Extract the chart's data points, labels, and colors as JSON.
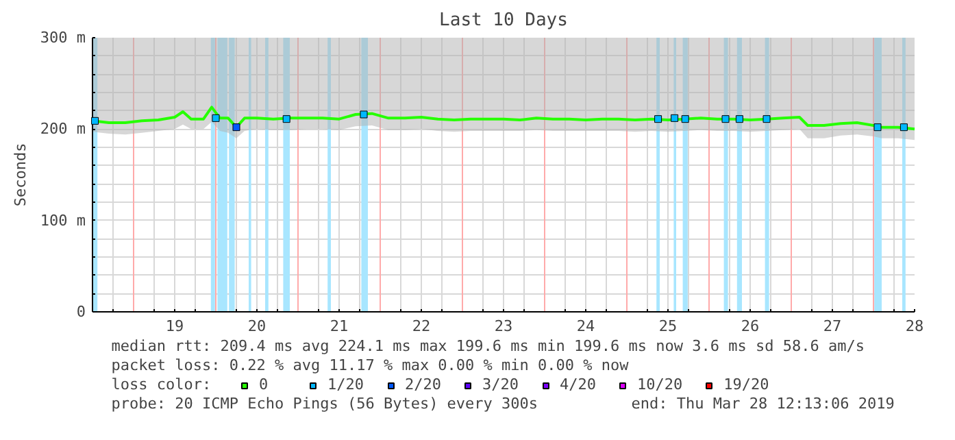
{
  "chart_data": {
    "type": "line",
    "title": "Last 10 Days",
    "ylabel": "Seconds",
    "xlim": [
      18,
      28
    ],
    "ylim": [
      0,
      300
    ],
    "xticks": [
      {
        "value": 18.25,
        "label": null
      },
      {
        "value": 18.75,
        "label": null
      },
      19,
      {
        "value": 19.25,
        "label": null
      },
      {
        "value": 19.75,
        "label": null
      },
      20,
      {
        "value": 20.25,
        "label": null
      },
      {
        "value": 20.75,
        "label": null
      },
      21,
      {
        "value": 21.25,
        "label": null
      },
      {
        "value": 21.75,
        "label": null
      },
      22,
      {
        "value": 22.25,
        "label": null
      },
      {
        "value": 22.75,
        "label": null
      },
      23,
      {
        "value": 23.25,
        "label": null
      },
      {
        "value": 23.75,
        "label": null
      },
      24,
      {
        "value": 24.25,
        "label": null
      },
      {
        "value": 24.75,
        "label": null
      },
      25,
      {
        "value": 25.25,
        "label": null
      },
      {
        "value": 25.75,
        "label": null
      },
      26,
      {
        "value": 26.25,
        "label": null
      },
      {
        "value": 26.75,
        "label": null
      },
      27,
      {
        "value": 27.25,
        "label": null
      },
      {
        "value": 27.75,
        "label": null
      },
      28
    ],
    "yticks": [
      0,
      {
        "value": 20,
        "label": null
      },
      {
        "value": 40,
        "label": null
      },
      {
        "value": 60,
        "label": null
      },
      {
        "value": 80,
        "label": null
      },
      {
        "value": 100,
        "label": "100 m"
      },
      {
        "value": 120,
        "label": null
      },
      {
        "value": 140,
        "label": null
      },
      {
        "value": 160,
        "label": null
      },
      {
        "value": 180,
        "label": null
      },
      {
        "value": 200,
        "label": "200 m"
      },
      {
        "value": 220,
        "label": null
      },
      {
        "value": 240,
        "label": null
      },
      {
        "value": 260,
        "label": null
      },
      {
        "value": 280,
        "label": null
      },
      {
        "value": 300,
        "label": "300 m"
      }
    ],
    "grid": true,
    "legend": "bottom",
    "legend_title": "loss color:",
    "series": [
      {
        "name": "0",
        "color": "#26ff00",
        "x": [
          18.0,
          18.2,
          18.4,
          18.6,
          18.8,
          19.0,
          19.1,
          19.2,
          19.35,
          19.45,
          19.55,
          19.65,
          19.75,
          19.85,
          20.0,
          20.2,
          20.4,
          20.6,
          20.8,
          21.0,
          21.2,
          21.4,
          21.6,
          21.8,
          22.0,
          22.2,
          22.4,
          22.6,
          22.8,
          23.0,
          23.2,
          23.4,
          23.6,
          23.8,
          24.0,
          24.2,
          24.4,
          24.6,
          24.8,
          25.0,
          25.2,
          25.4,
          25.6,
          25.8,
          26.0,
          26.2,
          26.4,
          26.6,
          26.7,
          26.9,
          27.1,
          27.3,
          27.5,
          27.6,
          27.8,
          28.0
        ],
        "values": [
          209,
          207,
          207,
          209,
          210,
          213,
          219,
          211,
          211,
          224,
          212,
          212,
          202,
          212,
          212,
          211,
          212,
          212,
          212,
          211,
          216,
          217,
          212,
          212,
          213,
          211,
          210,
          211,
          211,
          211,
          210,
          212,
          211,
          211,
          210,
          211,
          211,
          210,
          211,
          210,
          211,
          212,
          211,
          211,
          210,
          211,
          212,
          213,
          204,
          204,
          206,
          207,
          204,
          202,
          202,
          200
        ],
        "lower": [
          197,
          195,
          194,
          196,
          198,
          200,
          205,
          200,
          200,
          208,
          198,
          196,
          190,
          198,
          200,
          199,
          199,
          200,
          200,
          199,
          203,
          204,
          199,
          199,
          200,
          198,
          197,
          198,
          198,
          198,
          198,
          199,
          198,
          198,
          198,
          198,
          198,
          197,
          198,
          197,
          198,
          199,
          198,
          198,
          197,
          198,
          199,
          200,
          190,
          190,
          193,
          194,
          192,
          190,
          190,
          188
        ],
        "upper": [
          300,
          300,
          300,
          300,
          300,
          300,
          300,
          300,
          300,
          300,
          300,
          300,
          300,
          300,
          300,
          300,
          300,
          300,
          300,
          300,
          300,
          300,
          300,
          300,
          300,
          300,
          300,
          300,
          300,
          300,
          300,
          300,
          300,
          300,
          300,
          300,
          300,
          300,
          300,
          300,
          300,
          300,
          300,
          300,
          300,
          300,
          300,
          300,
          300,
          300,
          300,
          300,
          300,
          300,
          300,
          300
        ]
      },
      {
        "name": "1/20",
        "color": "#00b8ff",
        "type": "scatter",
        "marker": "square",
        "x": [
          18.03,
          19.5,
          20.36,
          21.3,
          24.88,
          25.08,
          25.21,
          25.7,
          25.87,
          26.2,
          27.55,
          27.87
        ],
        "values": [
          209,
          212,
          211,
          216,
          211,
          212,
          211,
          211,
          211,
          211,
          202,
          202
        ]
      },
      {
        "name": "2/20",
        "color": "#0059ff",
        "type": "scatter",
        "marker": "square",
        "x": [
          19.75
        ],
        "values": [
          202
        ]
      },
      {
        "name": "3/20",
        "color": "#5e00ff",
        "type": "scatter",
        "marker": "square"
      },
      {
        "name": "4/20",
        "color": "#7e00ff",
        "type": "scatter",
        "marker": "square"
      },
      {
        "name": "10/20",
        "color": "#dd00ff",
        "type": "scatter",
        "marker": "square"
      },
      {
        "name": "19/20",
        "color": "#ff0000",
        "type": "scatter",
        "marker": "square"
      }
    ],
    "bands": [
      {
        "axis": "x",
        "from": 18.0,
        "to": 18.06,
        "color": "#a8e6ff"
      },
      {
        "axis": "x",
        "from": 19.44,
        "to": 19.49,
        "color": "#a8e6ff"
      },
      {
        "axis": "x",
        "from": 19.52,
        "to": 19.64,
        "color": "#a8e6ff"
      },
      {
        "axis": "x",
        "from": 19.66,
        "to": 19.73,
        "color": "#a8e6ff"
      },
      {
        "axis": "x",
        "from": 19.9,
        "to": 19.93,
        "color": "#a8e6ff"
      },
      {
        "axis": "x",
        "from": 20.1,
        "to": 20.14,
        "color": "#a8e6ff"
      },
      {
        "axis": "x",
        "from": 20.32,
        "to": 20.4,
        "color": "#a8e6ff"
      },
      {
        "axis": "x",
        "from": 20.86,
        "to": 20.9,
        "color": "#a8e6ff"
      },
      {
        "axis": "x",
        "from": 21.27,
        "to": 21.35,
        "color": "#a8e6ff"
      },
      {
        "axis": "x",
        "from": 24.86,
        "to": 24.9,
        "color": "#a8e6ff"
      },
      {
        "axis": "x",
        "from": 25.07,
        "to": 25.1,
        "color": "#a8e6ff"
      },
      {
        "axis": "x",
        "from": 25.18,
        "to": 25.24,
        "color": "#a8e6ff"
      },
      {
        "axis": "x",
        "from": 25.68,
        "to": 25.73,
        "color": "#a8e6ff"
      },
      {
        "axis": "x",
        "from": 25.84,
        "to": 25.9,
        "color": "#a8e6ff"
      },
      {
        "axis": "x",
        "from": 26.18,
        "to": 26.23,
        "color": "#a8e6ff"
      },
      {
        "axis": "x",
        "from": 27.51,
        "to": 27.6,
        "color": "#a8e6ff"
      },
      {
        "axis": "x",
        "from": 27.85,
        "to": 27.89,
        "color": "#a8e6ff"
      }
    ],
    "ref_lines": [
      {
        "axis": "x",
        "value": 18.5,
        "color": "#ffaaaa"
      },
      {
        "axis": "x",
        "value": 19.5,
        "color": "#ffaaaa"
      },
      {
        "axis": "x",
        "value": 20.5,
        "color": "#ffaaaa"
      },
      {
        "axis": "x",
        "value": 21.5,
        "color": "#ffaaaa"
      },
      {
        "axis": "x",
        "value": 22.5,
        "color": "#ffaaaa"
      },
      {
        "axis": "x",
        "value": 23.5,
        "color": "#ffaaaa"
      },
      {
        "axis": "x",
        "value": 24.5,
        "color": "#ffaaaa"
      },
      {
        "axis": "x",
        "value": 25.5,
        "color": "#ffaaaa"
      },
      {
        "axis": "x",
        "value": 26.5,
        "color": "#ffaaaa"
      },
      {
        "axis": "x",
        "value": 27.5,
        "color": "#ffaaaa"
      }
    ],
    "annotations": [
      "median rtt:  209.4 ms avg  224.1 ms max  199.6 ms min  199.6 ms now  3.6 ms sd  58.6   am/s",
      "packet loss: 0.22 % avg  11.17 % max  0.00 % min  0.00 % now",
      "probe:       20 ICMP Echo Pings (56 Bytes) every 300s",
      "end: Thu Mar 28 12:13:06 2019"
    ]
  }
}
